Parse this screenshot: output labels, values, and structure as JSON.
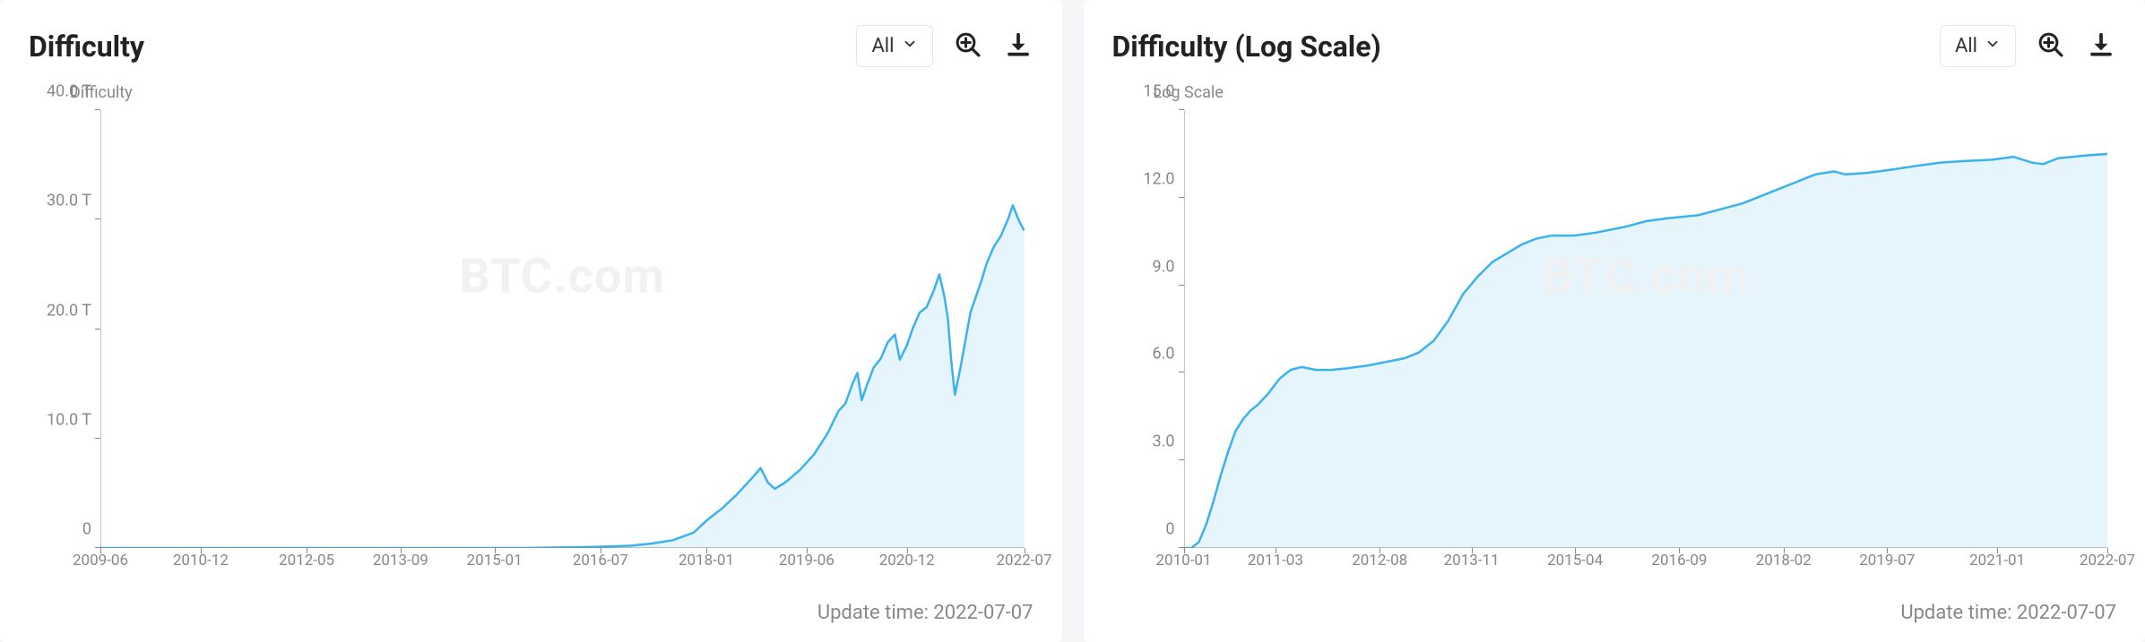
{
  "panels": [
    {
      "id": "difficulty-linear",
      "title": "Difficulty",
      "range_label": "All",
      "watermark": "BTC.com",
      "update_label": "Update time: 2022-07-07",
      "chart": {
        "type": "area",
        "y_title": "Difficulty",
        "line_color": "#3bb2f0",
        "area_color": "#e6f4fb",
        "axis_color": "#888888",
        "background_color": "#ffffff",
        "ylim": [
          0,
          40
        ],
        "y_ticks": [
          0,
          10,
          20,
          30,
          40
        ],
        "y_tick_labels": [
          "0",
          "10.0 T",
          "20.0 T",
          "30.0 T",
          "40.0 T"
        ],
        "x_domain": [
          2009.5,
          2022.58
        ],
        "x_tick_positions": [
          2009.5,
          2010.92,
          2012.42,
          2013.75,
          2015.08,
          2016.58,
          2018.08,
          2019.5,
          2020.92,
          2022.58
        ],
        "x_tick_labels": [
          "2009-06",
          "2010-12",
          "2012-05",
          "2013-09",
          "2015-01",
          "2016-07",
          "2018-01",
          "2019-06",
          "2020-12",
          "2022-07"
        ],
        "series": [
          [
            2009.5,
            0
          ],
          [
            2010.0,
            0
          ],
          [
            2011.0,
            0
          ],
          [
            2012.0,
            0
          ],
          [
            2013.0,
            0
          ],
          [
            2014.0,
            0
          ],
          [
            2015.0,
            0
          ],
          [
            2015.5,
            0
          ],
          [
            2016.0,
            0.05
          ],
          [
            2016.5,
            0.1
          ],
          [
            2017.0,
            0.2
          ],
          [
            2017.3,
            0.4
          ],
          [
            2017.6,
            0.7
          ],
          [
            2017.9,
            1.4
          ],
          [
            2018.1,
            2.6
          ],
          [
            2018.3,
            3.6
          ],
          [
            2018.5,
            4.8
          ],
          [
            2018.7,
            6.2
          ],
          [
            2018.85,
            7.3
          ],
          [
            2018.95,
            6.0
          ],
          [
            2019.05,
            5.4
          ],
          [
            2019.2,
            6.0
          ],
          [
            2019.4,
            7.1
          ],
          [
            2019.6,
            8.5
          ],
          [
            2019.8,
            10.5
          ],
          [
            2019.95,
            12.5
          ],
          [
            2020.05,
            13.2
          ],
          [
            2020.15,
            15.0
          ],
          [
            2020.22,
            16.0
          ],
          [
            2020.28,
            13.5
          ],
          [
            2020.35,
            14.8
          ],
          [
            2020.45,
            16.5
          ],
          [
            2020.55,
            17.3
          ],
          [
            2020.65,
            18.8
          ],
          [
            2020.75,
            19.5
          ],
          [
            2020.82,
            17.2
          ],
          [
            2020.92,
            18.5
          ],
          [
            2021.0,
            20.0
          ],
          [
            2021.1,
            21.5
          ],
          [
            2021.2,
            22.0
          ],
          [
            2021.3,
            23.5
          ],
          [
            2021.38,
            25.0
          ],
          [
            2021.45,
            23.0
          ],
          [
            2021.5,
            21.0
          ],
          [
            2021.55,
            17.0
          ],
          [
            2021.6,
            14.0
          ],
          [
            2021.68,
            16.5
          ],
          [
            2021.75,
            19.0
          ],
          [
            2021.82,
            21.5
          ],
          [
            2021.9,
            23.0
          ],
          [
            2021.98,
            24.5
          ],
          [
            2022.05,
            26.0
          ],
          [
            2022.15,
            27.5
          ],
          [
            2022.25,
            28.5
          ],
          [
            2022.35,
            30.0
          ],
          [
            2022.42,
            31.3
          ],
          [
            2022.5,
            30.0
          ],
          [
            2022.58,
            29.0
          ]
        ]
      }
    },
    {
      "id": "difficulty-log",
      "title": "Difficulty (Log Scale)",
      "range_label": "All",
      "watermark": "BTC.com",
      "update_label": "Update time: 2022-07-07",
      "chart": {
        "type": "area",
        "y_title": "Log Scale",
        "line_color": "#3bb2f0",
        "area_color": "#e6f4fb",
        "axis_color": "#888888",
        "background_color": "#ffffff",
        "ylim": [
          0,
          15
        ],
        "y_ticks": [
          0,
          3,
          6,
          9,
          12,
          15
        ],
        "y_tick_labels": [
          "0",
          "3.0",
          "6.0",
          "9.0",
          "12.0",
          "15.0"
        ],
        "x_domain": [
          2010.0,
          2022.58
        ],
        "x_tick_positions": [
          2010.0,
          2011.25,
          2012.67,
          2013.92,
          2015.33,
          2016.75,
          2018.17,
          2019.58,
          2021.08,
          2022.58
        ],
        "x_tick_labels": [
          "2010-01",
          "2011-03",
          "2012-08",
          "2013-11",
          "2015-04",
          "2016-09",
          "2018-02",
          "2019-07",
          "2021-01",
          "2022-07"
        ],
        "series": [
          [
            2010.0,
            0
          ],
          [
            2010.1,
            0
          ],
          [
            2010.2,
            0.2
          ],
          [
            2010.3,
            0.8
          ],
          [
            2010.4,
            1.6
          ],
          [
            2010.5,
            2.5
          ],
          [
            2010.6,
            3.3
          ],
          [
            2010.7,
            4.0
          ],
          [
            2010.8,
            4.4
          ],
          [
            2010.9,
            4.7
          ],
          [
            2011.0,
            4.9
          ],
          [
            2011.15,
            5.3
          ],
          [
            2011.3,
            5.8
          ],
          [
            2011.45,
            6.1
          ],
          [
            2011.6,
            6.2
          ],
          [
            2011.8,
            6.1
          ],
          [
            2012.0,
            6.1
          ],
          [
            2012.2,
            6.15
          ],
          [
            2012.5,
            6.25
          ],
          [
            2012.8,
            6.4
          ],
          [
            2013.0,
            6.5
          ],
          [
            2013.2,
            6.7
          ],
          [
            2013.4,
            7.1
          ],
          [
            2013.6,
            7.8
          ],
          [
            2013.8,
            8.7
          ],
          [
            2014.0,
            9.3
          ],
          [
            2014.2,
            9.8
          ],
          [
            2014.4,
            10.1
          ],
          [
            2014.6,
            10.4
          ],
          [
            2014.8,
            10.6
          ],
          [
            2015.0,
            10.7
          ],
          [
            2015.3,
            10.7
          ],
          [
            2015.6,
            10.8
          ],
          [
            2016.0,
            11.0
          ],
          [
            2016.3,
            11.2
          ],
          [
            2016.6,
            11.3
          ],
          [
            2017.0,
            11.4
          ],
          [
            2017.3,
            11.6
          ],
          [
            2017.6,
            11.8
          ],
          [
            2018.0,
            12.2
          ],
          [
            2018.3,
            12.5
          ],
          [
            2018.6,
            12.8
          ],
          [
            2018.85,
            12.9
          ],
          [
            2019.0,
            12.8
          ],
          [
            2019.3,
            12.85
          ],
          [
            2019.6,
            12.95
          ],
          [
            2020.0,
            13.1
          ],
          [
            2020.3,
            13.2
          ],
          [
            2020.6,
            13.25
          ],
          [
            2021.0,
            13.3
          ],
          [
            2021.3,
            13.4
          ],
          [
            2021.55,
            13.2
          ],
          [
            2021.7,
            13.15
          ],
          [
            2021.9,
            13.35
          ],
          [
            2022.1,
            13.4
          ],
          [
            2022.3,
            13.45
          ],
          [
            2022.58,
            13.5
          ]
        ]
      }
    }
  ]
}
